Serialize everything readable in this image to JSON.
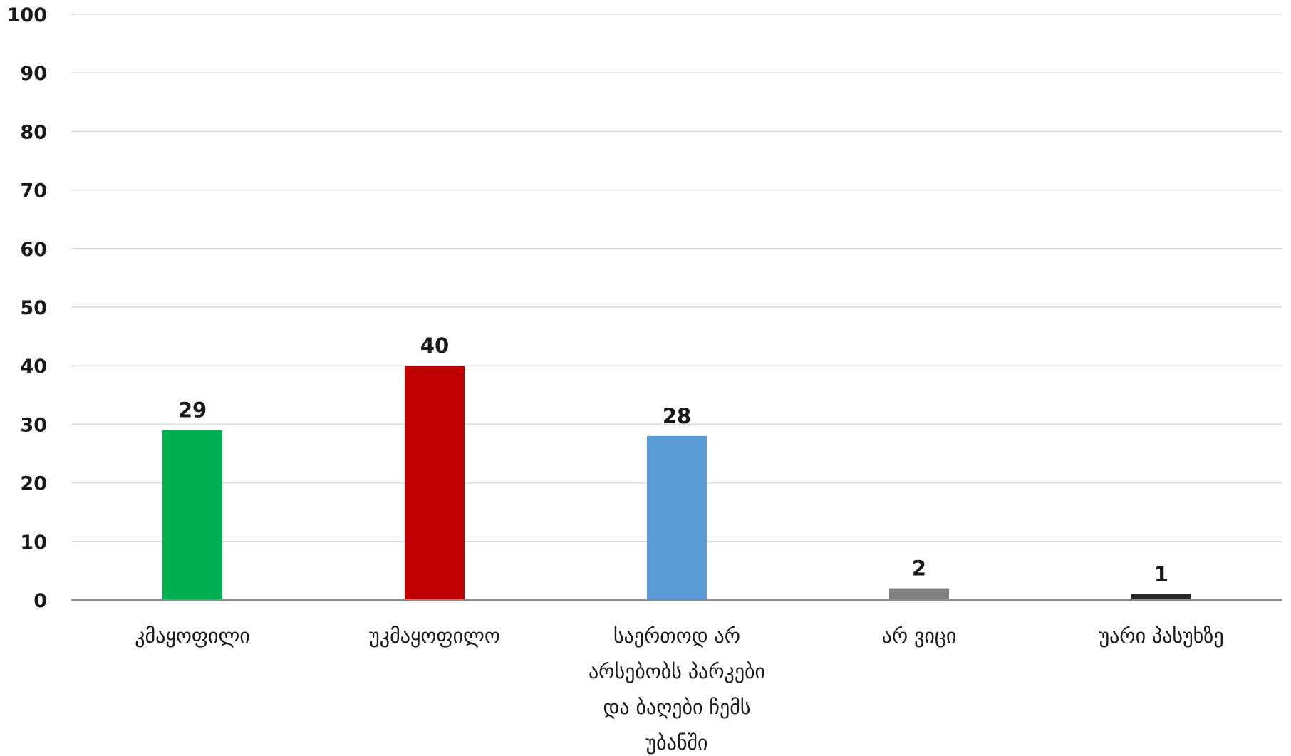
{
  "chart_data": {
    "type": "bar",
    "title": "",
    "xlabel": "",
    "ylabel": "",
    "ylim": [
      0,
      100
    ],
    "yticks": [
      "0",
      "10",
      "20",
      "30",
      "40",
      "50",
      "60",
      "70",
      "80",
      "90",
      "100"
    ],
    "grid": true,
    "legend": "none",
    "categories": [
      [
        "კმაყოფილი"
      ],
      [
        "უკმაყოფილო"
      ],
      [
        "საერთოდ არ",
        "არსებობს პარკები",
        "და ბაღები ჩემს",
        "უბანში"
      ],
      [
        "არ ვიცი"
      ],
      [
        "უარი პასუხზე"
      ]
    ],
    "values": [
      29,
      40,
      28,
      2,
      1
    ],
    "colors": [
      "#00b050",
      "#c00000",
      "#5b9bd5",
      "#808080",
      "#262626"
    ]
  }
}
